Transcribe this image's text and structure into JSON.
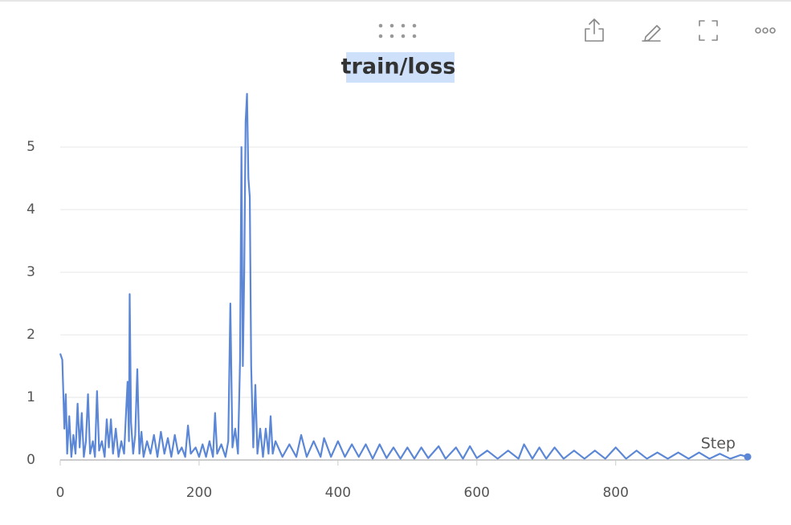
{
  "chart_data": {
    "type": "line",
    "title": "train/loss",
    "x_label": "Step",
    "x": [
      0,
      3,
      6,
      8,
      10,
      13,
      16,
      19,
      22,
      25,
      28,
      31,
      34,
      37,
      40,
      43,
      47,
      50,
      53,
      56,
      60,
      64,
      67,
      70,
      73,
      76,
      80,
      84,
      88,
      92,
      95,
      97,
      99,
      100,
      102,
      105,
      108,
      111,
      114,
      117,
      120,
      125,
      130,
      135,
      140,
      145,
      150,
      155,
      160,
      165,
      170,
      175,
      180,
      184,
      188,
      195,
      200,
      205,
      210,
      215,
      220,
      223,
      226,
      232,
      238,
      242,
      245,
      248,
      252,
      256,
      259,
      261,
      263,
      265,
      267,
      269,
      271,
      273,
      275,
      278,
      281,
      284,
      288,
      292,
      296,
      300,
      303,
      306,
      310,
      320,
      330,
      340,
      347,
      355,
      365,
      375,
      380,
      390,
      400,
      410,
      420,
      430,
      440,
      450,
      460,
      470,
      480,
      490,
      500,
      510,
      520,
      530,
      545,
      555,
      570,
      580,
      590,
      600,
      615,
      630,
      645,
      660,
      668,
      680,
      690,
      700,
      712,
      725,
      740,
      755,
      770,
      785,
      800,
      815,
      830,
      845,
      860,
      875,
      890,
      905,
      920,
      935,
      950,
      965,
      980,
      990
    ],
    "series": [
      {
        "color": "#5b87d6",
        "values": [
          1.7,
          1.6,
          0.5,
          1.05,
          0.1,
          0.7,
          0.05,
          0.4,
          0.1,
          0.9,
          0.2,
          0.75,
          0.05,
          0.3,
          1.05,
          0.1,
          0.3,
          0.05,
          1.1,
          0.15,
          0.3,
          0.05,
          0.65,
          0.2,
          0.65,
          0.1,
          0.5,
          0.05,
          0.3,
          0.1,
          0.8,
          1.25,
          0.3,
          2.65,
          0.6,
          0.1,
          0.4,
          1.45,
          0.1,
          0.45,
          0.05,
          0.3,
          0.1,
          0.4,
          0.05,
          0.45,
          0.1,
          0.35,
          0.05,
          0.4,
          0.1,
          0.2,
          0.05,
          0.55,
          0.1,
          0.2,
          0.05,
          0.25,
          0.05,
          0.3,
          0.05,
          0.75,
          0.1,
          0.25,
          0.05,
          0.3,
          2.5,
          0.2,
          0.5,
          0.1,
          1.6,
          5.0,
          1.5,
          3.0,
          5.4,
          5.85,
          4.5,
          4.2,
          1.5,
          0.2,
          1.2,
          0.1,
          0.5,
          0.05,
          0.5,
          0.1,
          0.7,
          0.1,
          0.3,
          0.05,
          0.25,
          0.05,
          0.4,
          0.05,
          0.3,
          0.05,
          0.35,
          0.05,
          0.3,
          0.05,
          0.25,
          0.05,
          0.25,
          0.02,
          0.25,
          0.03,
          0.2,
          0.02,
          0.2,
          0.02,
          0.2,
          0.03,
          0.22,
          0.02,
          0.2,
          0.02,
          0.22,
          0.03,
          0.15,
          0.02,
          0.15,
          0.02,
          0.25,
          0.02,
          0.2,
          0.02,
          0.2,
          0.02,
          0.15,
          0.02,
          0.15,
          0.02,
          0.2,
          0.02,
          0.15,
          0.02,
          0.12,
          0.02,
          0.12,
          0.02,
          0.12,
          0.02,
          0.1,
          0.02,
          0.08,
          0.05
        ]
      }
    ],
    "xlim": [
      0,
      990
    ],
    "ylim": [
      0,
      5.9
    ],
    "xticks": [
      0,
      200,
      400,
      600,
      800
    ],
    "yticks": [
      0,
      1,
      2,
      3,
      4,
      5
    ],
    "grid": true
  }
}
